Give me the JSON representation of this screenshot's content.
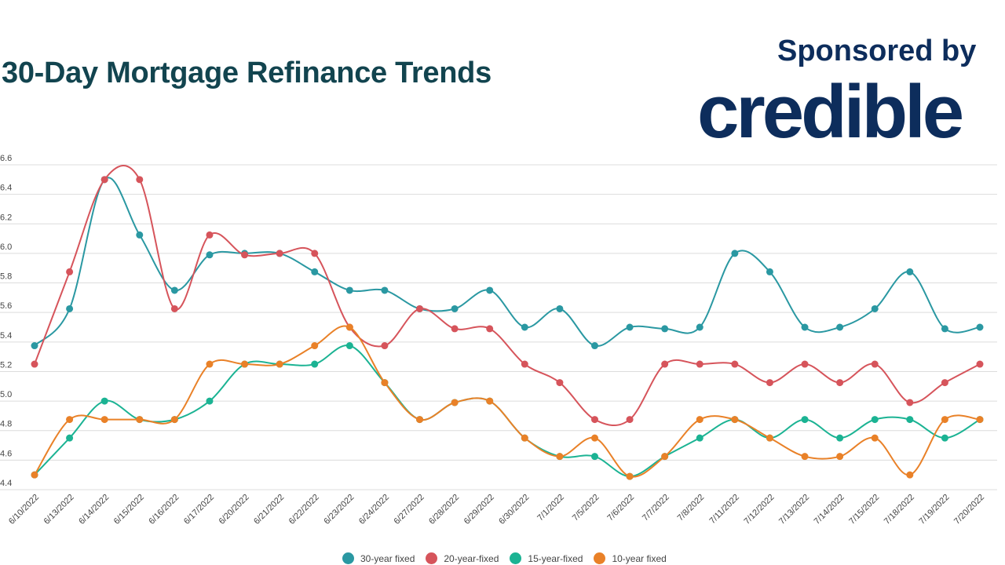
{
  "header": {
    "title": "30-Day Mortgage Refinance Trends",
    "sponsor_text": "Sponsored by",
    "sponsor_brand": "credible"
  },
  "chart_data": {
    "type": "line",
    "title": "30-Day Mortgage Refinance Trends",
    "xlabel": "",
    "ylabel": "",
    "ylim": [
      4.4,
      6.6
    ],
    "yticks": [
      4.4,
      4.6,
      4.8,
      5.0,
      5.2,
      5.4,
      5.6,
      5.8,
      6.0,
      6.2,
      6.4,
      6.6
    ],
    "grid": true,
    "legend_position": "bottom",
    "categories": [
      "6/10/2022",
      "6/13/2022",
      "6/14/2022",
      "6/15/2022",
      "6/16/2022",
      "6/17/2022",
      "6/20/2022",
      "6/21/2022",
      "6/22/2022",
      "6/23/2022",
      "6/24/2022",
      "6/27/2022",
      "6/28/2022",
      "6/29/2022",
      "6/30/2022",
      "7/1/2022",
      "7/5/2022",
      "7/6/2022",
      "7/7/2022",
      "7/8/2022",
      "7/11/2022",
      "7/12/2022",
      "7/13/2022",
      "7/14/2022",
      "7/15/2022",
      "7/18/2022",
      "7/19/2022",
      "7/20/2022"
    ],
    "series": [
      {
        "name": "30-year fixed",
        "color": "#2a98a2",
        "values": [
          5.375,
          5.625,
          6.5,
          6.125,
          5.75,
          5.99,
          6.0,
          6.0,
          5.875,
          5.75,
          5.75,
          5.625,
          5.625,
          5.75,
          5.5,
          5.625,
          5.375,
          5.5,
          5.49,
          5.5,
          6.0,
          5.875,
          5.5,
          5.5,
          5.625,
          5.875,
          5.49,
          5.5
        ]
      },
      {
        "name": "20-year-fixed",
        "color": "#d6545b",
        "values": [
          5.25,
          5.875,
          6.5,
          6.5,
          5.625,
          6.125,
          5.99,
          6.0,
          6.0,
          5.5,
          5.375,
          5.625,
          5.49,
          5.49,
          5.25,
          5.125,
          4.875,
          4.875,
          5.25,
          5.25,
          5.25,
          5.125,
          5.25,
          5.125,
          5.25,
          4.99,
          5.125,
          5.25
        ]
      },
      {
        "name": "15-year-fixed",
        "color": "#1bb393",
        "values": [
          4.5,
          4.75,
          5.0,
          4.875,
          4.875,
          5.0,
          5.25,
          5.25,
          5.25,
          5.375,
          5.125,
          4.875,
          4.99,
          5.0,
          4.75,
          4.625,
          4.625,
          4.49,
          4.625,
          4.75,
          4.875,
          4.75,
          4.875,
          4.75,
          4.875,
          4.875,
          4.75,
          4.875
        ]
      },
      {
        "name": "10-year fixed",
        "color": "#e98128",
        "values": [
          4.5,
          4.875,
          4.875,
          4.875,
          4.875,
          5.25,
          5.25,
          5.25,
          5.375,
          5.5,
          5.125,
          4.875,
          4.99,
          5.0,
          4.75,
          4.625,
          4.75,
          4.49,
          4.625,
          4.875,
          4.875,
          4.75,
          4.625,
          4.625,
          4.75,
          4.5,
          4.875,
          4.875
        ]
      }
    ]
  }
}
